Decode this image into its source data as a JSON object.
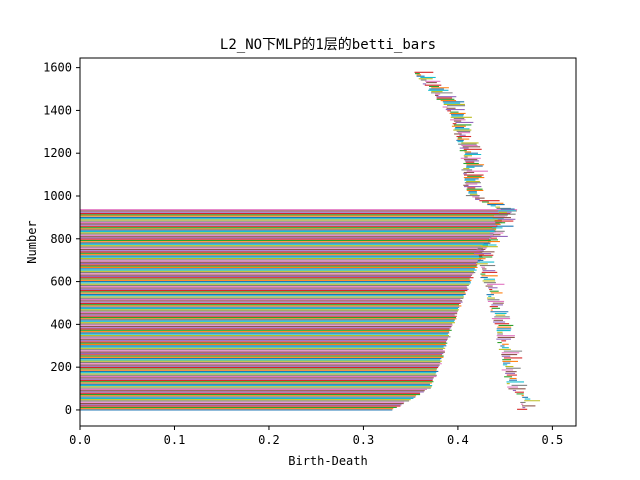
{
  "chart_data": {
    "type": "bar",
    "orientation": "horizontal",
    "title": "L2_NO下MLP的1层的betti_bars",
    "xlabel": "Birth-Death",
    "ylabel": "Number",
    "xlim": [
      0.0,
      0.525
    ],
    "ylim": [
      -75,
      1645
    ],
    "xticks": [
      0.0,
      0.1,
      0.2,
      0.3,
      0.4,
      0.5
    ],
    "xtick_labels": [
      "0.0",
      "0.1",
      "0.2",
      "0.3",
      "0.4",
      "0.5"
    ],
    "yticks": [
      0,
      200,
      400,
      600,
      800,
      1000,
      1200,
      1400,
      1600
    ],
    "ytick_labels": [
      "0",
      "200",
      "400",
      "600",
      "800",
      "1000",
      "1200",
      "1400",
      "1600"
    ],
    "grid": false,
    "bar_count": 1580,
    "bar_colors": [
      "#1f77b4",
      "#ff7f0e",
      "#2ca02c",
      "#d62728",
      "#9467bd",
      "#8c564b",
      "#e377c2",
      "#7f7f7f",
      "#bcbd22",
      "#17becf"
    ],
    "profile": {
      "description": "Bars at index 0..940 start at Birth-Death 0; bars at index 941..1579 are short intervals near 0.35-0.47. Lower rows extend to about 0.33 and lengths grow to about 0.465 at the top of the long block; short-bar endpoints follow the anchors below.",
      "long_bar_end": {
        "index": [
          0,
          100,
          200,
          300,
          400,
          500,
          600,
          700,
          800,
          900,
          940
        ],
        "end": [
          0.33,
          0.37,
          0.38,
          0.387,
          0.395,
          0.403,
          0.413,
          0.423,
          0.435,
          0.448,
          0.465
        ]
      },
      "short_bar_start": {
        "index": [
          0,
          50,
          100,
          200,
          300,
          400,
          500,
          600,
          700,
          740,
          760,
          800,
          900,
          940,
          1000,
          1100,
          1200,
          1300,
          1400,
          1500,
          1580
        ],
        "start": [
          0.465,
          0.47,
          0.455,
          0.448,
          0.445,
          0.44,
          0.435,
          0.428,
          0.42,
          0.42,
          0.425,
          0.435,
          0.44,
          0.445,
          0.41,
          0.407,
          0.405,
          0.398,
          0.39,
          0.37,
          0.355
        ]
      }
    }
  }
}
